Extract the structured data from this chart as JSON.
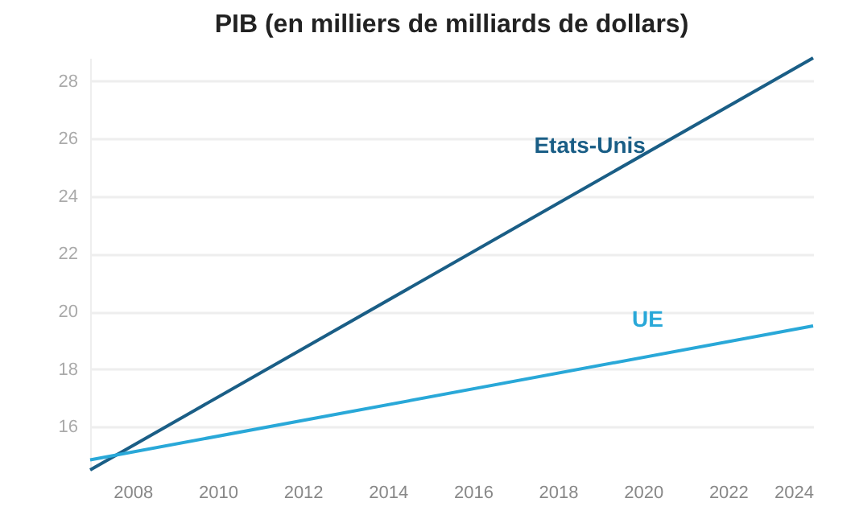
{
  "chart_data": {
    "type": "line",
    "title": "PIB (en milliers de milliards de dollars)",
    "x": [
      2007,
      2024
    ],
    "series": [
      {
        "name": "Etats-Unis",
        "color": "#1a5e86",
        "values": [
          14.5,
          28.8
        ]
      },
      {
        "name": "UE",
        "color": "#29a8d8",
        "values": [
          14.85,
          19.5
        ]
      }
    ],
    "xlim": [
      2007,
      2024
    ],
    "xticks": [
      2008,
      2010,
      2012,
      2014,
      2016,
      2018,
      2020,
      2022,
      2024
    ],
    "ylim": [
      14.5,
      28.8
    ],
    "yticks": [
      16,
      18,
      20,
      22,
      24,
      26,
      28
    ],
    "grid": "y",
    "legend": false,
    "marker": "none",
    "line_style": "solid"
  }
}
